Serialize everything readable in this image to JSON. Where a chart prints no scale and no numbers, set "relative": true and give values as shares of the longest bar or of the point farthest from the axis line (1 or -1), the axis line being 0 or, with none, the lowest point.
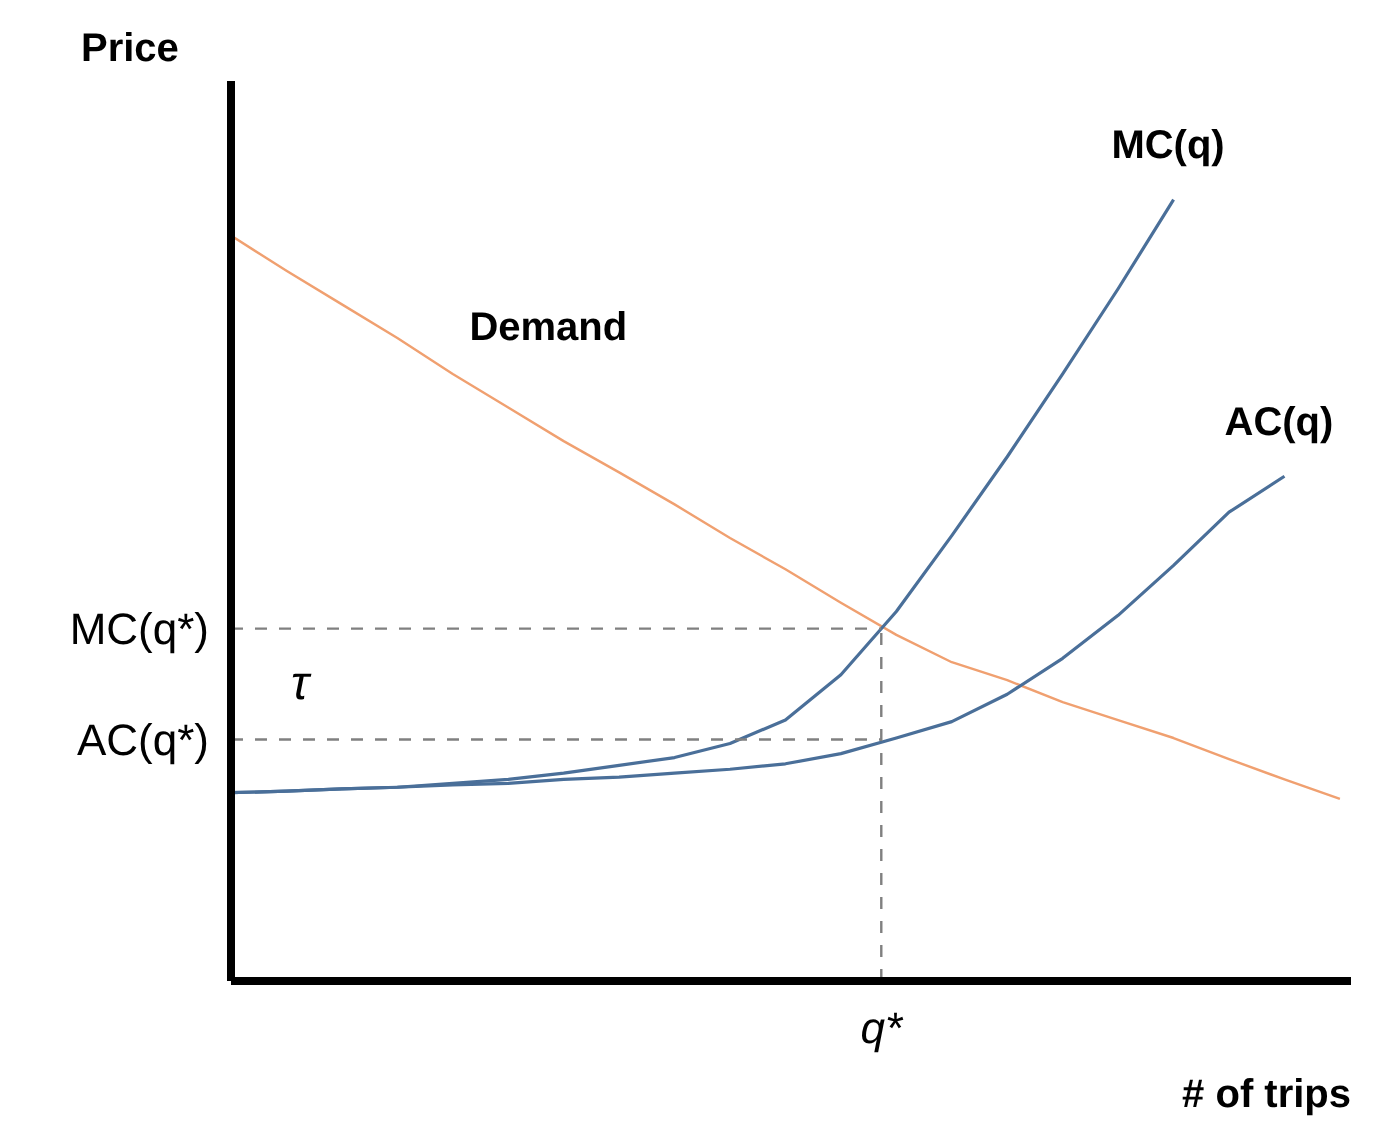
{
  "chart_data": {
    "type": "line",
    "relative": true,
    "ylabel": "Price",
    "xlabel": "# of trips",
    "categories": [
      null,
      null,
      null,
      null,
      null,
      null,
      null,
      null,
      null,
      null,
      null,
      null,
      null,
      null,
      null,
      null,
      null,
      null,
      null,
      null,
      null
    ],
    "series": [
      {
        "name": "Demand",
        "color": "#f0a070",
        "values": [
          0.954,
          0.909,
          0.866,
          0.823,
          0.777,
          0.734,
          0.691,
          0.651,
          0.61,
          0.567,
          0.527,
          0.484,
          0.443,
          0.408,
          0.385,
          0.357,
          0.334,
          0.311,
          0.284,
          0.258,
          0.233
        ]
      },
      {
        "name": "MC(q)",
        "color": "#4a6f99",
        "values": [
          0.241,
          0.243,
          0.246,
          0.248,
          0.253,
          0.258,
          0.266,
          0.276,
          0.286,
          0.304,
          0.334,
          0.392,
          0.473,
          0.57,
          0.671,
          0.777,
          0.886,
          1,
          null,
          null,
          null
        ]
      },
      {
        "name": "AC(q)",
        "color": "#4a6f99",
        "values": [
          0.241,
          0.243,
          0.246,
          0.248,
          0.251,
          0.253,
          0.258,
          0.261,
          0.266,
          0.271,
          0.278,
          0.291,
          0.311,
          0.332,
          0.367,
          0.413,
          0.468,
          0.532,
          0.6,
          0.646,
          null
        ]
      }
    ],
    "ref_lines": [
      {
        "axis": "y",
        "value": 0.451,
        "label": "MC(q*)",
        "line_style": "dashed",
        "color": "#808080"
      },
      {
        "axis": "y",
        "value": 0.309,
        "label": "AC(q*)",
        "line_style": "dashed",
        "color": "#808080"
      }
    ],
    "annotations": [
      "τ",
      "q*"
    ],
    "legend": false,
    "grid": false,
    "marker": "none",
    "line_style": "solid"
  }
}
